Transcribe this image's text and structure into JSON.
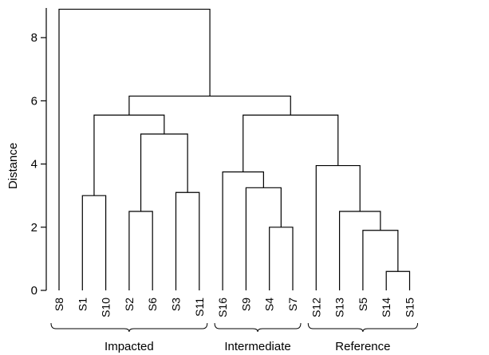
{
  "axis": {
    "label": "Distance",
    "ticks": [
      0,
      2,
      4,
      6,
      8
    ],
    "tick_labels": [
      "0",
      "2",
      "4",
      "6",
      "8"
    ]
  },
  "leaves": [
    "S8",
    "S1",
    "S10",
    "S2",
    "S6",
    "S3",
    "S11",
    "S16",
    "S9",
    "S4",
    "S7",
    "S12",
    "S13",
    "S5",
    "S14",
    "S15"
  ],
  "merges": [
    {
      "a": "S14",
      "b": "S15",
      "height": 0.6
    },
    {
      "a": "S4",
      "b": "S7",
      "height": 2.0
    },
    {
      "a": "S5",
      "b": "S14|S15",
      "height": 1.9
    },
    {
      "a": "S2",
      "b": "S6",
      "height": 2.5
    },
    {
      "a": "S13",
      "b": "S5|S14|S15",
      "height": 2.5
    },
    {
      "a": "S1",
      "b": "S10",
      "height": 3.0
    },
    {
      "a": "S3",
      "b": "S11",
      "height": 3.1
    },
    {
      "a": "S9",
      "b": "S4|S7",
      "height": 3.25
    },
    {
      "a": "S16",
      "b": "S9|S4|S7",
      "height": 3.75
    },
    {
      "a": "S12",
      "b": "S13|S5|S14|S15",
      "height": 3.95
    },
    {
      "a": "S2|S6",
      "b": "S3|S11",
      "height": 4.95
    },
    {
      "a": "S1|S10",
      "b": "S2|S6|S3|S11",
      "height": 5.55
    },
    {
      "a": "S16|S9|S4|S7",
      "b": "S12|S13|S5|S14|S15",
      "height": 5.55
    },
    {
      "a": "S1|S10|S2|S6|S3|S11",
      "b": "S16|S9|S4|S7|S12|S13|S5|S14|S15",
      "height": 6.15
    },
    {
      "a": "S8",
      "b": "S1|S10|S2|S6|S3|S11|S16|S9|S4|S7|S12|S13|S5|S14|S15",
      "height": 8.9
    }
  ],
  "groups": [
    {
      "label": "Impacted",
      "from": "S8",
      "to": "S11"
    },
    {
      "label": "Intermediate",
      "from": "S16",
      "to": "S7"
    },
    {
      "label": "Reference",
      "from": "S12",
      "to": "S15"
    }
  ]
}
